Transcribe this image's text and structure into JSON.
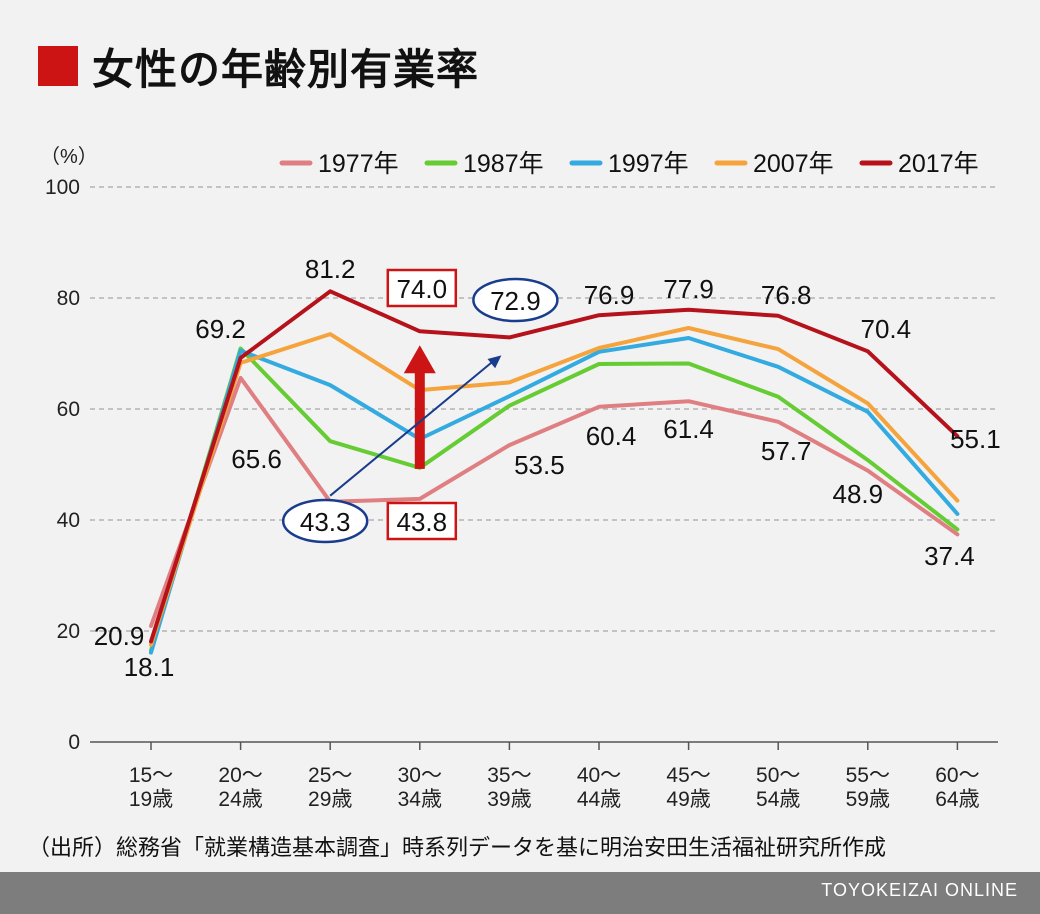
{
  "title": "女性の年齢別有業率",
  "source": "（出所）総務省「就業構造基本調査」時系列データを基に明治安田生活福祉研究所作成",
  "brand": "TOYOKEIZAI ONLINE",
  "colors": {
    "accent": "#cc1414",
    "annotation_blue": "#1a3c8c",
    "grid": "#b3b3b3",
    "footer": "#7d7d7d"
  },
  "chart_data": {
    "type": "line",
    "unit_label": "（%）",
    "ylim": [
      0,
      100
    ],
    "yticks": [
      0,
      20,
      40,
      60,
      80,
      100
    ],
    "grid": true,
    "legend_position": "top-right",
    "categories": [
      [
        "15〜",
        "19歳"
      ],
      [
        "20〜",
        "24歳"
      ],
      [
        "25〜",
        "29歳"
      ],
      [
        "30〜",
        "34歳"
      ],
      [
        "35〜",
        "39歳"
      ],
      [
        "40〜",
        "44歳"
      ],
      [
        "45〜",
        "49歳"
      ],
      [
        "50〜",
        "54歳"
      ],
      [
        "55〜",
        "59歳"
      ],
      [
        "60〜",
        "64歳"
      ]
    ],
    "series": [
      {
        "name": "1977年",
        "color": "#e07f82",
        "values": [
          20.9,
          65.6,
          43.3,
          43.8,
          53.5,
          60.4,
          61.4,
          57.7,
          48.9,
          37.4
        ]
      },
      {
        "name": "1987年",
        "color": "#66cc33",
        "values": [
          16.5,
          70.9,
          54.2,
          49.4,
          60.6,
          68.1,
          68.2,
          62.2,
          50.8,
          38.3
        ]
      },
      {
        "name": "1997年",
        "color": "#33aae0",
        "values": [
          16.1,
          70.5,
          64.3,
          54.6,
          62.3,
          70.3,
          72.8,
          67.6,
          59.5,
          41.1
        ]
      },
      {
        "name": "2007年",
        "color": "#f5a33c",
        "values": [
          17.5,
          68.3,
          73.5,
          63.4,
          64.8,
          71.0,
          74.6,
          70.8,
          61.0,
          43.5
        ]
      },
      {
        "name": "2017年",
        "color": "#b5121b",
        "values": [
          18.1,
          69.2,
          81.2,
          74.0,
          72.9,
          76.9,
          77.9,
          76.8,
          70.4,
          55.1
        ]
      }
    ],
    "data_labels": [
      {
        "series": "2017年",
        "index": 0,
        "text": "18.1"
      },
      {
        "series": "1977年",
        "index": 0,
        "text": "20.9"
      },
      {
        "series": "2017年",
        "index": 1,
        "text": "69.2"
      },
      {
        "series": "1977年",
        "index": 1,
        "text": "65.6"
      },
      {
        "series": "2017年",
        "index": 2,
        "text": "81.2"
      },
      {
        "series": "1977年",
        "index": 2,
        "text": "43.3",
        "style": "ellipse"
      },
      {
        "series": "2017年",
        "index": 3,
        "text": "74.0",
        "style": "box"
      },
      {
        "series": "1977年",
        "index": 3,
        "text": "43.8",
        "style": "box"
      },
      {
        "series": "2017年",
        "index": 4,
        "text": "72.9",
        "style": "ellipse"
      },
      {
        "series": "1977年",
        "index": 4,
        "text": "53.5"
      },
      {
        "series": "2017年",
        "index": 5,
        "text": "76.9"
      },
      {
        "series": "1977年",
        "index": 5,
        "text": "60.4"
      },
      {
        "series": "2017年",
        "index": 6,
        "text": "77.9"
      },
      {
        "series": "1977年",
        "index": 6,
        "text": "61.4"
      },
      {
        "series": "2017年",
        "index": 7,
        "text": "76.8"
      },
      {
        "series": "1977年",
        "index": 7,
        "text": "57.7"
      },
      {
        "series": "2017年",
        "index": 8,
        "text": "70.4"
      },
      {
        "series": "1977年",
        "index": 8,
        "text": "48.9"
      },
      {
        "series": "2017年",
        "index": 9,
        "text": "55.1"
      },
      {
        "series": "1977年",
        "index": 9,
        "text": "37.4"
      }
    ],
    "annotations": [
      {
        "type": "thick-arrow",
        "color": "#cc1414",
        "category_index": 3,
        "from_value": 43.8,
        "to_value": 74.0
      },
      {
        "type": "thin-arrow",
        "color": "#1a3c8c",
        "from": {
          "category_index": 2,
          "value": 43.3
        },
        "to": {
          "category_index": 4,
          "value": 72.9
        }
      }
    ]
  }
}
